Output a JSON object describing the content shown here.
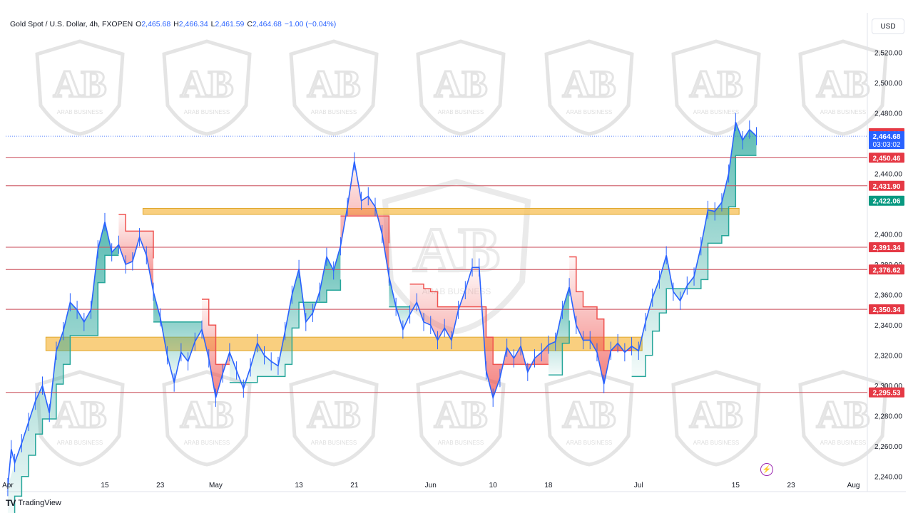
{
  "header": {
    "symbol": "Gold Spot / U.S. Dollar, 4h, FXOPEN",
    "open_label": "O",
    "open": "2,465.68",
    "high_label": "H",
    "high": "2,466.34",
    "low_label": "L",
    "low": "2,461.59",
    "close_label": "C",
    "close": "2,464.68",
    "change": "−1.00 (−0.04%)"
  },
  "currency": "USD",
  "branding": {
    "footer": "TradingView",
    "watermark_text": "ARAB BUSINESS"
  },
  "colors": {
    "up_band": "#26a69a",
    "down_band": "#ef5350",
    "price_line": "#2962ff",
    "level_line": "#c94a57",
    "zone_fill": "#f7c35f",
    "zone_border": "#e0a82e"
  },
  "chart_data": {
    "type": "line",
    "title": "Gold Spot / U.S. Dollar, 4h, FXOPEN",
    "y_axis_ticks": [
      "2,520.00",
      "2,500.00",
      "2,480.00",
      "2,440.00",
      "2,400.00",
      "2,380.00",
      "2,360.00",
      "2,340.00",
      "2,320.00",
      "2,300.00",
      "2,280.00",
      "2,260.00",
      "2,240.00"
    ],
    "y_tick_values": [
      2520,
      2500,
      2480,
      2440,
      2400,
      2380,
      2360,
      2340,
      2320,
      2300,
      2280,
      2260,
      2240
    ],
    "ylim": [
      2230,
      2532
    ],
    "x_axis_ticks": [
      {
        "label": "Apr",
        "day": 0
      },
      {
        "label": "15",
        "day": 14
      },
      {
        "label": "23",
        "day": 22
      },
      {
        "label": "May",
        "day": 30
      },
      {
        "label": "13",
        "day": 42
      },
      {
        "label": "21",
        "day": 50
      },
      {
        "label": "Jun",
        "day": 61
      },
      {
        "label": "10",
        "day": 70
      },
      {
        "label": "18",
        "day": 78
      },
      {
        "label": "Jul",
        "day": 91
      },
      {
        "label": "15",
        "day": 105
      },
      {
        "label": "23",
        "day": 113
      },
      {
        "label": "Aug",
        "day": 122
      }
    ],
    "xlim_days": [
      -0.3,
      124
    ],
    "horizontal_levels": [
      {
        "value": 2466.66,
        "label": "2,466.66",
        "color": "#e53945"
      },
      {
        "value": 2450.46,
        "label": "2,450.46",
        "color": "#e53945"
      },
      {
        "value": 2431.9,
        "label": "2,431.90",
        "color": "#e53945"
      },
      {
        "value": 2391.34,
        "label": "2,391.34",
        "color": "#e53945"
      },
      {
        "value": 2376.62,
        "label": "2,376.62",
        "color": "#e53945"
      },
      {
        "value": 2350.34,
        "label": "2,350.34",
        "color": "#e53945"
      },
      {
        "value": 2295.53,
        "label": "2,295.53",
        "color": "#e53945"
      }
    ],
    "support_label": {
      "value": 2422.06,
      "label": "2,422.06",
      "color": "#089981"
    },
    "last_price": {
      "value": 2464.68,
      "label": "2,464.68",
      "countdown": "03:03:02",
      "color": "#2962ff"
    },
    "zones": [
      {
        "day_from": 19.5,
        "day_to": 105.5,
        "low": 2413,
        "high": 2417
      },
      {
        "day_from": 5.5,
        "day_to": 91.5,
        "low": 2323,
        "high": 2332
      }
    ],
    "series": [
      {
        "days": [
          0,
          0.5,
          1,
          2,
          3,
          4,
          5,
          6,
          7,
          8,
          9,
          10,
          11,
          12,
          13,
          14,
          15,
          16,
          17,
          18,
          19,
          20,
          21,
          22,
          23,
          24,
          25,
          26,
          27,
          28,
          29,
          30,
          31,
          32,
          33,
          34,
          35,
          36,
          37,
          38,
          39,
          40,
          41,
          42,
          43,
          44,
          45,
          46,
          47,
          48,
          49,
          50,
          51,
          52,
          53,
          54,
          55,
          56,
          57,
          58,
          59,
          60,
          61,
          62,
          63,
          64,
          65,
          66,
          67,
          68,
          69,
          70,
          71,
          72,
          73,
          74,
          75,
          76,
          77,
          78,
          79,
          80,
          81,
          82,
          83,
          84,
          85,
          86,
          87,
          88,
          89,
          90,
          91,
          92,
          93,
          94,
          95,
          96,
          97,
          98,
          99,
          100,
          101,
          102,
          103,
          104,
          105,
          106,
          107,
          108
        ],
        "values": [
          2233,
          2258,
          2249,
          2262,
          2276,
          2290,
          2300,
          2282,
          2323,
          2336,
          2355,
          2350,
          2342,
          2350,
          2390,
          2408,
          2388,
          2393,
          2380,
          2382,
          2398,
          2386,
          2362,
          2345,
          2320,
          2302,
          2322,
          2316,
          2329,
          2337,
          2318,
          2292,
          2308,
          2322,
          2310,
          2298,
          2312,
          2328,
          2320,
          2316,
          2313,
          2336,
          2360,
          2377,
          2342,
          2348,
          2362,
          2385,
          2376,
          2392,
          2418,
          2448,
          2422,
          2425,
          2418,
          2400,
          2372,
          2352,
          2337,
          2347,
          2355,
          2342,
          2340,
          2330,
          2338,
          2330,
          2350,
          2363,
          2378,
          2378,
          2310,
          2292,
          2305,
          2325,
          2318,
          2326,
          2309,
          2318,
          2322,
          2327,
          2329,
          2350,
          2365,
          2340,
          2330,
          2330,
          2322,
          2301,
          2323,
          2328,
          2322,
          2326,
          2323,
          2342,
          2358,
          2370,
          2386,
          2362,
          2356,
          2366,
          2372,
          2392,
          2416,
          2415,
          2421,
          2440,
          2474,
          2462,
          2469,
          2464.68
        ],
        "trail_color_by_day": "up until 16, down 16-21, up 21-28, down 28-32, up 32-48, down 48-55, up 55-58, down 58-78, up 78-81, down 81-90, up 90-108"
      }
    ]
  }
}
